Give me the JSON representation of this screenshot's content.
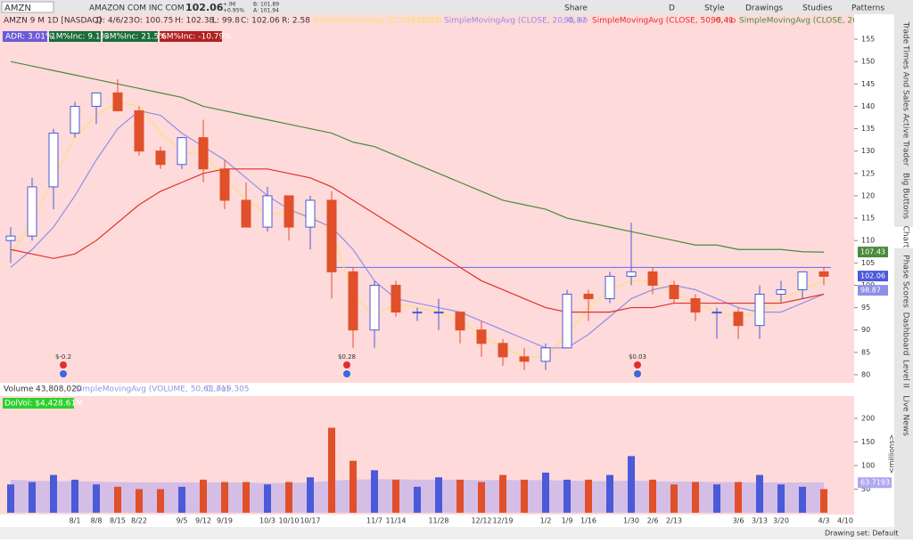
{
  "toolbar": {
    "symbol": "AMZN",
    "company": "AMAZON COM INC COM",
    "last": "102.06",
    "change": "+.96",
    "change_pct": "+0.95%",
    "bid": "B: 101.89",
    "ask": "A: 101.94",
    "buttons": [
      "Share",
      "D",
      "Style",
      "Drawings",
      "Studies",
      "Patterns"
    ]
  },
  "header": {
    "description": "AMZN 9 M 1D [NASDAQ]",
    "date": "D: 4/6/23",
    "open": "O: 100.75",
    "high": "H: 102.38",
    "low": "L: 99.8",
    "close": "C: 102.06",
    "range": "R: 2.58",
    "badges": [
      "ADR: 3.01%",
      "1M%Inc: 9.1%",
      "3M%Inc: 21.5%",
      "6M%Inc: -10.79%"
    ]
  },
  "volume_header": {
    "label": "Volume",
    "value": "43,808,020",
    "sma_value": "63,719,305",
    "dolvol": "DolVol: $4,428.61M",
    "unit": "<millions>"
  },
  "events": [
    "$-0.2",
    "$0.28",
    "$0.03"
  ],
  "sidebar": {
    "tabs": [
      "Trade",
      "Times And Sales",
      "Active Trader",
      "Big Buttons",
      "Chart",
      "Phase Scores",
      "Dashboard",
      "Level II",
      "Live News"
    ]
  },
  "footer": {
    "drawing_set": "Drawing set: Default"
  },
  "chart_data": [
    {
      "type": "candlestick",
      "categories": [
        null,
        null,
        null,
        "8/1",
        "8/8",
        "8/15",
        "8/22",
        null,
        "9/5",
        "9/12",
        "9/19",
        null,
        "10/3",
        "10/10",
        "10/17",
        null,
        null,
        "11/7",
        "11/14",
        null,
        "11/28",
        null,
        "12/12",
        "12/19",
        null,
        "1/2",
        "1/9",
        "1/16",
        null,
        "1/30",
        "2/6",
        "2/13",
        null,
        null,
        "3/6",
        "3/13",
        "3/20",
        null,
        "4/3",
        "4/10"
      ],
      "open": [
        110,
        111,
        122,
        134,
        140,
        143,
        139,
        130,
        127,
        133,
        126,
        119,
        113,
        120,
        113,
        119,
        103,
        90,
        100,
        94,
        94,
        94,
        90,
        87,
        84,
        83,
        86,
        98,
        97,
        102,
        103,
        100,
        97,
        94,
        94,
        91,
        98,
        99,
        103,
        null
      ],
      "high": [
        113,
        124,
        135,
        141,
        143,
        146,
        140,
        131,
        133,
        137,
        128,
        123,
        122,
        120,
        120,
        121,
        104,
        101,
        101,
        95,
        97,
        94,
        92,
        88,
        86,
        87,
        99,
        99,
        103,
        114,
        104,
        101,
        98,
        95,
        95,
        100,
        101,
        103,
        104,
        null
      ],
      "low": [
        105,
        110,
        117,
        133,
        136,
        139,
        129,
        126,
        126,
        123,
        117,
        113,
        112,
        110,
        108,
        97,
        86,
        86,
        93,
        92,
        90,
        87,
        84,
        82,
        81,
        81,
        86,
        92,
        96,
        100,
        98,
        96,
        92,
        88,
        88,
        88,
        96,
        97,
        100,
        null
      ],
      "close": [
        111,
        122,
        134,
        140,
        143,
        139,
        130,
        127,
        133,
        126,
        119,
        113,
        120,
        113,
        119,
        103,
        90,
        100,
        94,
        94,
        94,
        90,
        87,
        84,
        83,
        86,
        98,
        97,
        102,
        103,
        100,
        97,
        94,
        94,
        91,
        98,
        99,
        103,
        102,
        null
      ],
      "up_color": "#4a5ad8",
      "down_color": "#e0502a",
      "series": [
        {
          "name": "SimpleMovingAvg (CLOSE, 10, 0, no)",
          "last_label": "100.80",
          "color": "#f5e27a",
          "values": [
            107,
            114,
            124,
            133,
            138,
            141,
            140,
            134,
            130,
            129,
            124,
            119,
            116,
            116,
            116,
            112,
            98,
            93,
            96,
            95,
            94,
            92,
            89,
            86,
            84,
            84,
            89,
            95,
            99,
            101,
            101,
            98,
            96,
            94,
            93,
            94,
            97,
            99,
            101,
            null
          ]
        },
        {
          "name": "SimpleMovingAvg (CLOSE, 20, 0, no)",
          "last_label": "98.87",
          "color": "#8f8fe8",
          "values": [
            104,
            108,
            113,
            120,
            128,
            135,
            139,
            138,
            134,
            131,
            128,
            124,
            120,
            117,
            115,
            113,
            108,
            101,
            97,
            96,
            95,
            94,
            92,
            90,
            88,
            86,
            86,
            89,
            93,
            97,
            99,
            100,
            99,
            97,
            95,
            94,
            94,
            96,
            98,
            null
          ]
        },
        {
          "name": "SimpleMovingAvg (CLOSE, 50, 0, no)",
          "last_label": "98.41",
          "color": "#e0302a",
          "values": [
            108,
            107,
            106,
            107,
            110,
            114,
            118,
            121,
            123,
            125,
            126,
            126,
            126,
            125,
            124,
            122,
            119,
            116,
            113,
            110,
            107,
            104,
            101,
            99,
            97,
            95,
            94,
            94,
            94,
            95,
            95,
            96,
            96,
            96,
            96,
            96,
            96,
            97,
            98,
            null
          ]
        },
        {
          "name": "SimpleMovingAvg (CLOSE, 200, 0, no)",
          "last_label": "",
          "color": "#4a8a3a",
          "values": [
            150,
            149,
            148,
            147,
            146,
            145,
            144,
            143,
            142,
            140,
            139,
            138,
            137,
            136,
            135,
            134,
            132,
            131,
            129,
            127,
            125,
            123,
            121,
            119,
            118,
            117,
            115,
            114,
            113,
            112,
            111,
            110,
            109,
            109,
            108,
            108,
            108,
            107.5,
            107.4,
            null
          ]
        }
      ],
      "hline": 104,
      "hline_color": "#6a6ae8",
      "price_labels": [
        {
          "value": 107.43,
          "color": "#4a8a3a"
        },
        {
          "value": 102.06,
          "color": "#4a5ad8"
        },
        {
          "value": 98.87,
          "color": "#8f8fe8"
        }
      ],
      "ylim": [
        78.2,
        157.8
      ],
      "yticks": [
        80,
        85,
        90,
        95,
        100,
        105,
        110,
        115,
        120,
        125,
        130,
        135,
        140,
        145,
        150,
        155
      ]
    },
    {
      "type": "bar",
      "series": [
        {
          "name": "Volume",
          "values": [
            60,
            65,
            80,
            70,
            60,
            55,
            50,
            50,
            55,
            70,
            65,
            65,
            60,
            65,
            75,
            180,
            110,
            90,
            70,
            55,
            75,
            70,
            65,
            80,
            70,
            85,
            70,
            70,
            80,
            120,
            70,
            60,
            65,
            60,
            65,
            80,
            60,
            55,
            50,
            null
          ]
        },
        {
          "name": "SimpleMovingAvg (VOLUME, 50, 0, no)",
          "color": "#b0a8f0",
          "values": [
            70,
            68,
            67,
            67,
            66,
            65,
            64,
            64,
            64,
            64,
            64,
            64,
            63,
            63,
            64,
            68,
            70,
            71,
            71,
            70,
            70,
            70,
            69,
            69,
            69,
            69,
            68,
            67,
            67,
            68,
            67,
            66,
            66,
            65,
            65,
            64,
            64,
            64,
            64,
            null
          ]
        }
      ],
      "last_label": 63.7193,
      "ylim": [
        0,
        247
      ],
      "yticks": [
        50,
        100,
        150,
        200
      ]
    }
  ]
}
